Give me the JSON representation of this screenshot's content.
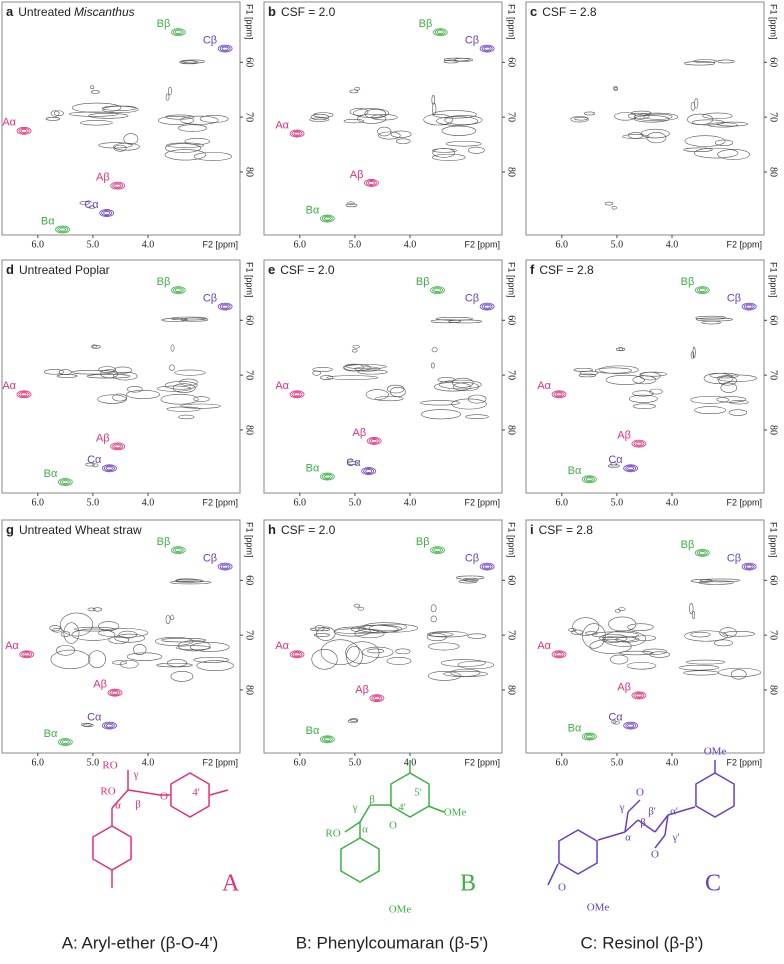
{
  "axes": {
    "xlabel": "F2 [ppm]",
    "ylabel": "F1 [ppm]",
    "xlim": [
      6.65,
      2.33
    ],
    "ylim": [
      49,
      91.5
    ],
    "xticks": [
      {
        "value": 6,
        "label": "6.0"
      },
      {
        "value": 5,
        "label": "5.0"
      },
      {
        "value": 4,
        "label": "4.0"
      }
    ],
    "yticks": [
      60,
      70,
      80
    ]
  },
  "panels": [
    {
      "letter": "a",
      "title": "Untreated",
      "title_italic": "Miscanthus",
      "peaks": [
        {
          "label": "Aα",
          "x": 6.25,
          "y": 72.5
        },
        {
          "label": "Aβ",
          "x": 4.55,
          "y": 82.5
        },
        {
          "label": "Bα",
          "x": 5.55,
          "y": 90.5
        },
        {
          "label": "Bβ",
          "x": 3.45,
          "y": 54.5
        },
        {
          "label": "Cα",
          "x": 4.75,
          "y": 87.5
        },
        {
          "label": "Cβ",
          "x": 2.6,
          "y": 57.5
        }
      ]
    },
    {
      "letter": "b",
      "title": "CSF = 2.0",
      "peaks": [
        {
          "label": "Aα",
          "x": 6.05,
          "y": 73
        },
        {
          "label": "Aβ",
          "x": 4.7,
          "y": 82
        },
        {
          "label": "Bα",
          "x": 5.5,
          "y": 88.5
        },
        {
          "label": "Bβ",
          "x": 3.45,
          "y": 54.5
        },
        {
          "label": "Cβ",
          "x": 2.6,
          "y": 57.5
        }
      ]
    },
    {
      "letter": "c",
      "title": "CSF = 2.8",
      "peaks": []
    },
    {
      "letter": "d",
      "title": "Untreated Poplar",
      "peaks": [
        {
          "label": "Aα",
          "x": 6.25,
          "y": 73.5
        },
        {
          "label": "Aβ",
          "x": 4.55,
          "y": 83
        },
        {
          "label": "Bα",
          "x": 5.5,
          "y": 89.5
        },
        {
          "label": "Bβ",
          "x": 3.45,
          "y": 54.5
        },
        {
          "label": "Cα",
          "x": 4.7,
          "y": 87
        },
        {
          "label": "Cβ",
          "x": 2.6,
          "y": 57.5
        }
      ]
    },
    {
      "letter": "e",
      "title": "CSF = 2.0",
      "peaks": [
        {
          "label": "Aα",
          "x": 6.05,
          "y": 73.5
        },
        {
          "label": "Aβ",
          "x": 4.65,
          "y": 82
        },
        {
          "label": "Bα",
          "x": 5.5,
          "y": 88.5
        },
        {
          "label": "Bβ",
          "x": 3.5,
          "y": 54.5
        },
        {
          "label": "Cα",
          "x": 4.75,
          "y": 87.5
        },
        {
          "label": "Cβ",
          "x": 2.6,
          "y": 57.5
        }
      ]
    },
    {
      "letter": "f",
      "title": "CSF = 2.8",
      "peaks": [
        {
          "label": "Aα",
          "x": 6.05,
          "y": 73.5
        },
        {
          "label": "Aβ",
          "x": 4.6,
          "y": 82.5
        },
        {
          "label": "Bα",
          "x": 5.5,
          "y": 89
        },
        {
          "label": "Bβ",
          "x": 3.45,
          "y": 54.5
        },
        {
          "label": "Cα",
          "x": 4.75,
          "y": 87
        },
        {
          "label": "Cβ",
          "x": 2.6,
          "y": 57.5
        }
      ]
    },
    {
      "letter": "g",
      "title": "Untreated Wheat straw",
      "peaks": [
        {
          "label": "Aα",
          "x": 6.2,
          "y": 73.5
        },
        {
          "label": "Aβ",
          "x": 4.6,
          "y": 80.5
        },
        {
          "label": "Bα",
          "x": 5.5,
          "y": 89.5
        },
        {
          "label": "Bβ",
          "x": 3.45,
          "y": 54.5
        },
        {
          "label": "Cα",
          "x": 4.7,
          "y": 86.5
        },
        {
          "label": "Cβ",
          "x": 2.6,
          "y": 57.5
        }
      ]
    },
    {
      "letter": "h",
      "title": "CSF = 2.0",
      "peaks": [
        {
          "label": "Aα",
          "x": 6.05,
          "y": 73.5
        },
        {
          "label": "Aβ",
          "x": 4.6,
          "y": 81.5
        },
        {
          "label": "Bα",
          "x": 5.5,
          "y": 89
        },
        {
          "label": "Bβ",
          "x": 3.5,
          "y": 54.5
        },
        {
          "label": "Cβ",
          "x": 2.6,
          "y": 57.5
        }
      ]
    },
    {
      "letter": "i",
      "title": "CSF = 2.8",
      "peaks": [
        {
          "label": "Aα",
          "x": 6.05,
          "y": 73.5
        },
        {
          "label": "Aβ",
          "x": 4.6,
          "y": 81
        },
        {
          "label": "Bα",
          "x": 5.5,
          "y": 88.5
        },
        {
          "label": "Bβ",
          "x": 3.45,
          "y": 55
        },
        {
          "label": "Cα",
          "x": 4.75,
          "y": 86.5
        },
        {
          "label": "Cβ",
          "x": 2.6,
          "y": 57.5
        }
      ]
    }
  ],
  "structures": [
    {
      "letter": "A",
      "caption": "A: Aryl-ether (β-O-4')",
      "atoms": [
        "RO",
        "RO",
        "O",
        "γ",
        "α",
        "β",
        "4'"
      ]
    },
    {
      "letter": "B",
      "caption": "B: Phenylcoumaran (β-5')",
      "atoms": [
        "OMe",
        "OMe",
        "RO",
        "O",
        "γ",
        "β",
        "α",
        "5'",
        "4'"
      ]
    },
    {
      "letter": "C",
      "caption": "C: Resinol (β-β')",
      "atoms": [
        "OMe",
        "OMe",
        "O",
        "O",
        "O",
        "α",
        "β",
        "γ",
        "α'",
        "β'",
        "γ'"
      ]
    }
  ]
}
